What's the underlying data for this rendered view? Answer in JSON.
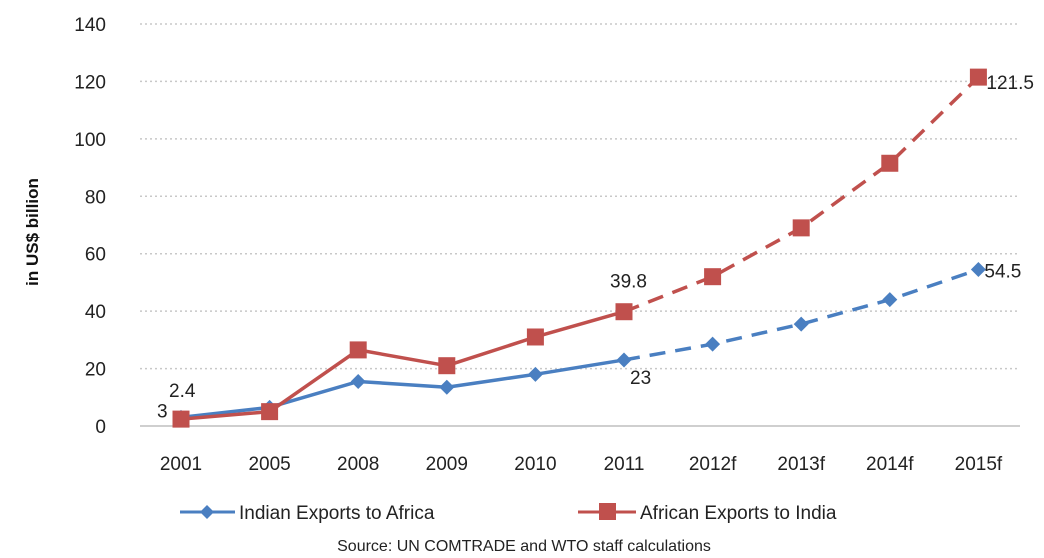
{
  "chart_data": {
    "type": "line",
    "categories": [
      "2001",
      "2005",
      "2008",
      "2009",
      "2010",
      "2011",
      "2012f",
      "2013f",
      "2014f",
      "2015f"
    ],
    "ylabel": "in US$ billion",
    "xlabel": "",
    "ylim": [
      0,
      140
    ],
    "yticks": [
      0,
      20,
      40,
      60,
      80,
      100,
      120,
      140
    ],
    "grid": "horizontal dotted",
    "legend_position": "bottom",
    "source": "Source: UN COMTRADE and WTO staff calculations",
    "forecast_start_index": 5,
    "series": [
      {
        "name": "Indian Exports to Africa",
        "color": "#4a7fc1",
        "marker": "diamond",
        "values": [
          3,
          6.5,
          15.5,
          13.5,
          18,
          23,
          28.5,
          35.5,
          44,
          54.5
        ]
      },
      {
        "name": "African Exports to India",
        "color": "#c0504d",
        "marker": "square",
        "values": [
          2.4,
          5,
          26.5,
          21,
          31,
          39.8,
          52,
          69,
          91.5,
          121.5
        ]
      }
    ],
    "annotations": [
      {
        "text": "3",
        "series": 0,
        "index": 0
      },
      {
        "text": "2.4",
        "series": 1,
        "index": 0
      },
      {
        "text": "39.8",
        "series": 1,
        "index": 5
      },
      {
        "text": "23",
        "series": 0,
        "index": 5
      },
      {
        "text": "121.5",
        "series": 1,
        "index": 9
      },
      {
        "text": "54.5",
        "series": 0,
        "index": 9
      }
    ]
  }
}
